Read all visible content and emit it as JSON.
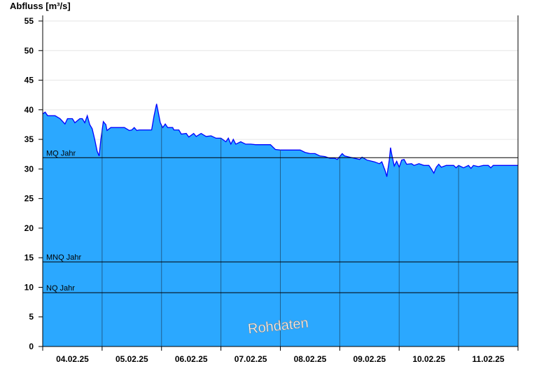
{
  "chart_data": {
    "type": "area",
    "ylabel": "Abfluss [m³/s]",
    "ylim": [
      0,
      55
    ],
    "yticks": [
      0,
      5,
      10,
      15,
      20,
      25,
      30,
      35,
      40,
      45,
      50,
      55
    ],
    "x_start": "04.02.25",
    "x_end": "12.02.25",
    "xticks": [
      "04.02.25",
      "05.02.25",
      "06.02.25",
      "07.02.25",
      "08.02.25",
      "09.02.25",
      "10.02.25",
      "11.02.25"
    ],
    "grid": true,
    "fill_color": "#2ba8ff",
    "line_color": "#0000ff",
    "watermark": "Rohdaten",
    "reference_lines": [
      {
        "name": "MQ Jahr",
        "value": 31.9
      },
      {
        "name": "MNQ Jahr",
        "value": 14.3
      },
      {
        "name": "NQ Jahr",
        "value": 9.1
      }
    ],
    "series_hours_since_start": [
      0,
      1,
      2,
      5,
      7,
      9,
      10,
      12,
      13,
      15,
      16,
      17,
      18,
      19,
      20,
      21,
      22,
      22.8,
      23.5,
      24.5,
      25.5,
      26,
      27.5,
      29,
      33,
      35,
      36,
      37,
      38,
      39,
      44,
      45,
      46,
      46.5,
      47.5,
      48.5,
      49.5,
      50.5,
      52.5,
      53,
      55,
      56,
      58,
      59,
      61,
      62,
      64,
      66,
      68,
      70,
      72,
      74,
      75,
      76,
      77,
      78,
      80,
      82,
      84,
      86,
      88,
      92,
      93,
      94,
      96,
      100,
      104,
      106,
      108,
      110,
      112,
      114,
      116,
      118,
      119,
      120,
      121,
      122,
      124,
      126,
      128,
      129,
      131,
      132,
      134,
      136,
      137,
      138.5,
      139,
      140,
      140.5,
      141,
      142,
      143,
      144,
      145,
      146,
      147,
      149,
      150,
      152,
      154,
      156,
      157,
      158,
      159,
      160,
      161,
      163,
      166,
      167,
      168,
      170,
      172,
      173,
      174,
      176,
      178,
      180,
      181,
      182,
      192
    ],
    "series_values": [
      39.3,
      39.6,
      39.0,
      39.0,
      38.5,
      37.6,
      38.5,
      38.5,
      37.8,
      38.5,
      38.5,
      37.8,
      39.0,
      37.5,
      36.8,
      35,
      33,
      32.2,
      35,
      38,
      37.5,
      36.5,
      37,
      37,
      37,
      36.5,
      36.6,
      37,
      36.5,
      36.6,
      36.6,
      39,
      41,
      40,
      37.8,
      37,
      37.6,
      37,
      37,
      36.6,
      36.6,
      35.9,
      36,
      35.4,
      36,
      35.5,
      36,
      35.5,
      35.6,
      35.2,
      35.2,
      34.6,
      35.2,
      34.2,
      35.0,
      34.2,
      34.6,
      34.2,
      34.2,
      34.1,
      34.1,
      34.1,
      33.7,
      33.3,
      33.2,
      33.2,
      33.2,
      32.8,
      32.6,
      32.6,
      32.2,
      32.1,
      31.8,
      31.8,
      31.6,
      32.1,
      32.6,
      32.2,
      32.0,
      31.8,
      31.6,
      32,
      31.5,
      31.4,
      31.2,
      30.9,
      31.2,
      29.5,
      28.7,
      31.5,
      33.6,
      32.5,
      30.5,
      31.3,
      30.3,
      31.5,
      31.6,
      30.8,
      30.9,
      30.6,
      30.9,
      30.6,
      30.6,
      30.0,
      29.3,
      30.3,
      30.8,
      30.3,
      30.6,
      30.6,
      30.2,
      30.6,
      30.2,
      30.6,
      30.1,
      30.6,
      30.4,
      30.6,
      30.6,
      30.2,
      30.6,
      30.6
    ]
  }
}
